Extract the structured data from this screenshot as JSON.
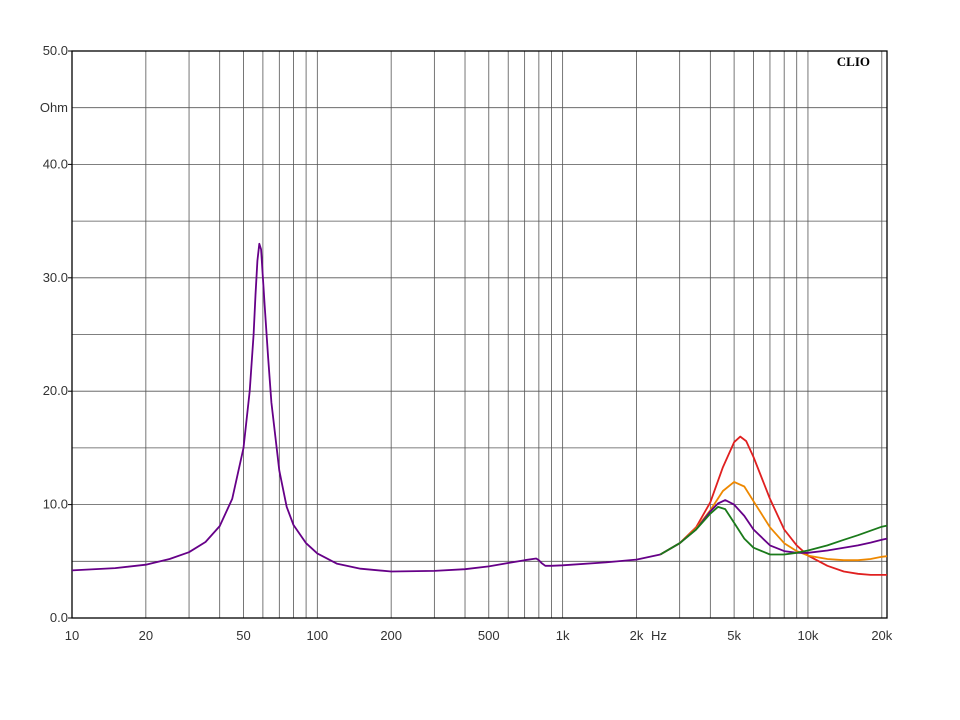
{
  "brand": "CLIO",
  "chart_data": {
    "type": "line",
    "xscale": "log",
    "xlim": [
      10,
      21000
    ],
    "ylim": [
      0,
      50
    ],
    "grid": true,
    "ylabel": "Ohm",
    "xlabel": "Hz",
    "x_ticks": [
      {
        "v": 10,
        "label": "10"
      },
      {
        "v": 20,
        "label": "20"
      },
      {
        "v": 50,
        "label": "50"
      },
      {
        "v": 100,
        "label": "100"
      },
      {
        "v": 200,
        "label": "200"
      },
      {
        "v": 500,
        "label": "500"
      },
      {
        "v": 1000,
        "label": "1k"
      },
      {
        "v": 2000,
        "label": "2k"
      },
      {
        "v": 5000,
        "label": "5k"
      },
      {
        "v": 10000,
        "label": "10k"
      },
      {
        "v": 20000,
        "label": "20k"
      }
    ],
    "y_ticks": [
      {
        "v": 0,
        "label": "0.0"
      },
      {
        "v": 10,
        "label": "10.0"
      },
      {
        "v": 20,
        "label": "20.0"
      },
      {
        "v": 30,
        "label": "30.0"
      },
      {
        "v": 40,
        "label": "40.0"
      },
      {
        "v": 50,
        "label": "50.0"
      }
    ],
    "base_curve": {
      "x": [
        10,
        15,
        20,
        25,
        30,
        35,
        40,
        45,
        50,
        53,
        55,
        56,
        57,
        58,
        59,
        60,
        61,
        63,
        65,
        70,
        75,
        80,
        90,
        100,
        120,
        150,
        200,
        300,
        400,
        500,
        600,
        700,
        780,
        800,
        820,
        850,
        900,
        1000,
        1500,
        2000,
        2500
      ],
      "y": [
        4.2,
        4.4,
        4.7,
        5.2,
        5.8,
        6.7,
        8.1,
        10.5,
        15.0,
        20.0,
        25.0,
        28.5,
        31.5,
        33.0,
        32.5,
        30.0,
        27.5,
        23.0,
        19.0,
        13.0,
        9.8,
        8.2,
        6.6,
        5.7,
        4.8,
        4.35,
        4.1,
        4.15,
        4.3,
        4.55,
        4.85,
        5.1,
        5.25,
        5.1,
        4.85,
        4.6,
        4.6,
        4.65,
        4.9,
        5.15,
        5.6
      ]
    },
    "series": [
      {
        "color": "#e02020",
        "x": [
          2500,
          3000,
          3500,
          4000,
          4500,
          5000,
          5300,
          5600,
          6000,
          7000,
          8000,
          9000,
          10000,
          12000,
          14000,
          16000,
          18000,
          20000,
          21000
        ],
        "y": [
          5.6,
          6.6,
          8.0,
          10.2,
          13.3,
          15.5,
          16.0,
          15.6,
          14.2,
          10.5,
          7.8,
          6.4,
          5.5,
          4.6,
          4.1,
          3.9,
          3.8,
          3.8,
          3.8
        ]
      },
      {
        "color": "#ee8800",
        "x": [
          2500,
          3000,
          3500,
          4000,
          4500,
          5000,
          5500,
          6000,
          7000,
          8000,
          9000,
          10000,
          12000,
          14000,
          16000,
          18000,
          20000,
          21000
        ],
        "y": [
          5.6,
          6.6,
          7.9,
          9.5,
          11.2,
          12.0,
          11.6,
          10.3,
          8.0,
          6.6,
          5.9,
          5.5,
          5.2,
          5.1,
          5.1,
          5.2,
          5.4,
          5.45
        ]
      },
      {
        "color": "#660088",
        "x": [
          2500,
          3000,
          3500,
          4000,
          4300,
          4600,
          5000,
          5500,
          6000,
          7000,
          8000,
          9000,
          10000,
          12000,
          14000,
          16000,
          18000,
          20000,
          21000
        ],
        "y": [
          5.6,
          6.6,
          7.8,
          9.4,
          10.1,
          10.4,
          10.0,
          9.0,
          7.8,
          6.4,
          5.9,
          5.75,
          5.75,
          5.95,
          6.2,
          6.4,
          6.65,
          6.9,
          7.0
        ]
      },
      {
        "color": "#1a7a1a",
        "x": [
          2500,
          3000,
          3500,
          4000,
          4300,
          4600,
          5000,
          5500,
          6000,
          7000,
          8000,
          9000,
          10000,
          12000,
          14000,
          16000,
          18000,
          20000,
          21000
        ],
        "y": [
          5.6,
          6.6,
          7.8,
          9.2,
          9.8,
          9.6,
          8.4,
          7.0,
          6.2,
          5.6,
          5.6,
          5.75,
          5.95,
          6.4,
          6.9,
          7.3,
          7.7,
          8.05,
          8.15
        ]
      }
    ],
    "base_color": "#660088"
  }
}
